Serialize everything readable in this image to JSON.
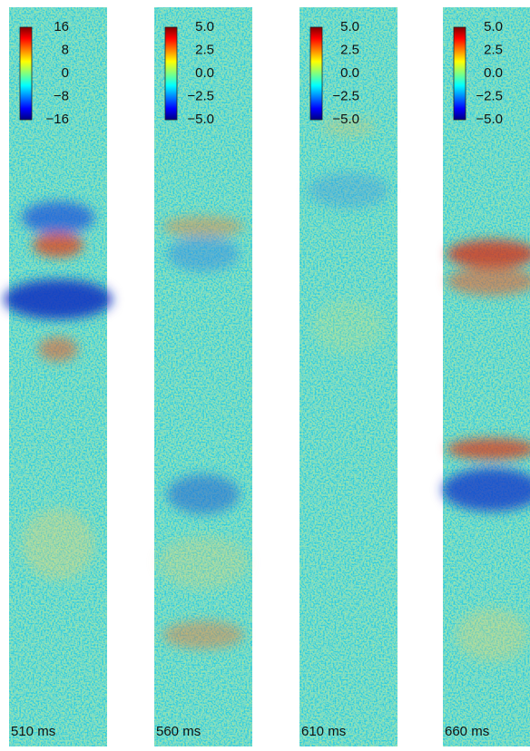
{
  "panels": [
    {
      "label": "510 ms",
      "colorbar_ticks": [
        "16",
        "8",
        "0",
        "−8",
        "−16"
      ]
    },
    {
      "label": "560 ms",
      "colorbar_ticks": [
        "5.0",
        "2.5",
        "0.0",
        "−2.5",
        "−5.0"
      ]
    },
    {
      "label": "610 ms",
      "colorbar_ticks": [
        "5.0",
        "2.5",
        "0.0",
        "−2.5",
        "−5.0"
      ]
    },
    {
      "label": "660 ms",
      "colorbar_ticks": [
        "5.0",
        "2.5",
        "0.0",
        "−2.5",
        "−5.0"
      ]
    }
  ]
}
